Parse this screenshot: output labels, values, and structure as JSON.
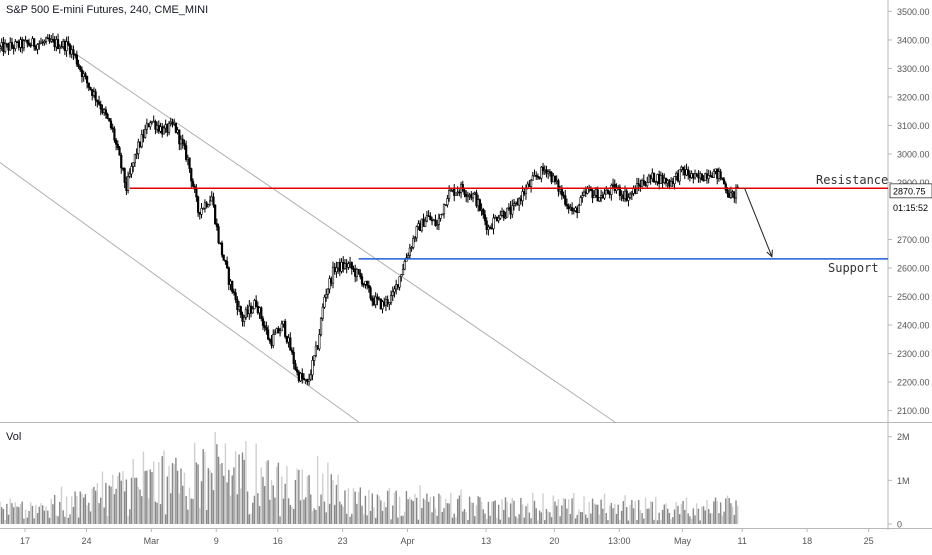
{
  "chart_data": {
    "type": "candlestick",
    "title": "S&P 500 E-mini Futures, 240, CME_MINI",
    "colors": {
      "background": "#ffffff",
      "candle": "#000000",
      "resistance": "#e00000",
      "support": "#1e5fd8",
      "channel": "#b0b0b0",
      "volume_dark": "#888888",
      "volume_light": "#cfcfcf",
      "axis_text": "#555555",
      "price_tag_bg": "#ffffff"
    },
    "price_axis": {
      "ticks": [
        "3500.00",
        "3400.00",
        "3300.00",
        "3200.00",
        "3100.00",
        "3000.00",
        "2900.00",
        "2700.00",
        "2600.00",
        "2500.00",
        "2400.00",
        "2300.00",
        "2200.00",
        "2100.00"
      ],
      "tick_values": [
        3500,
        3400,
        3300,
        3200,
        3100,
        3000,
        2900,
        2700,
        2600,
        2500,
        2400,
        2300,
        2200,
        2100
      ],
      "ylim": [
        2060,
        3540
      ]
    },
    "current_price": {
      "label": "2870.75",
      "value": 2870.75,
      "countdown": "01:15:52"
    },
    "x_axis": {
      "labels": [
        "17",
        "24",
        "Mar",
        "9",
        "16",
        "23",
        "Apr",
        "13",
        "20",
        "13:00",
        "May",
        "11",
        "18",
        "25"
      ],
      "label_index": [
        0,
        36,
        74,
        112,
        148,
        186,
        224,
        270,
        310,
        348,
        385,
        420,
        458,
        494
      ],
      "total_bars": 520
    },
    "annotations": {
      "resistance": {
        "label": "Resistance",
        "price": 2880,
        "start_bar": 76
      },
      "support": {
        "label": "Support",
        "price": 2632,
        "start_bar": 210
      },
      "arrow": {
        "from_bar": 436,
        "from_price": 2880,
        "to_bar": 452,
        "to_price": 2640
      },
      "channel_upper": {
        "from_bar": 36,
        "from_price": 3385,
        "to_bar": 360,
        "to_price": 2060
      },
      "channel_lower": {
        "from_bar": 0,
        "from_price": 2970,
        "to_bar": 210,
        "to_price": 2060
      }
    },
    "price_path": {
      "bars": [
        0,
        15,
        30,
        40,
        44,
        50,
        58,
        66,
        74,
        80,
        88,
        96,
        102,
        110,
        116,
        124,
        128,
        134,
        142,
        150,
        158,
        166,
        174,
        180,
        186,
        190,
        196,
        204,
        212,
        218,
        224,
        230,
        238,
        244,
        250,
        256,
        262,
        270,
        278,
        286,
        292,
        300,
        306,
        314,
        320,
        328,
        336,
        344,
        352,
        360,
        368,
        376,
        384,
        392,
        400,
        408,
        416,
        422,
        428,
        432
      ],
      "prices": [
        3370,
        3385,
        3390,
        3380,
        3340,
        3260,
        3180,
        3080,
        2880,
        3010,
        3120,
        3080,
        3100,
        2980,
        2800,
        2850,
        2700,
        2560,
        2420,
        2480,
        2340,
        2400,
        2230,
        2190,
        2330,
        2500,
        2600,
        2610,
        2560,
        2490,
        2470,
        2500,
        2640,
        2730,
        2780,
        2750,
        2860,
        2880,
        2850,
        2740,
        2790,
        2800,
        2860,
        2920,
        2950,
        2870,
        2790,
        2870,
        2850,
        2880,
        2850,
        2900,
        2920,
        2900,
        2940,
        2910,
        2940,
        2920,
        2850,
        2870
      ]
    },
    "volume_axis": {
      "ticks": [
        "2M",
        "1M",
        "0"
      ],
      "tick_values": [
        2000000,
        1000000,
        0
      ],
      "ylim": [
        0,
        2200000
      ]
    },
    "volume_label": "Vol",
    "volume_profile": {
      "bars": [
        0,
        40,
        80,
        110,
        130,
        150,
        170,
        186,
        200,
        230,
        260,
        300,
        340,
        380,
        420,
        440
      ],
      "values": [
        350000,
        600000,
        1200000,
        1300000,
        1500000,
        1400000,
        1000000,
        1100000,
        800000,
        650000,
        550000,
        500000,
        480000,
        460000,
        520000,
        420000
      ]
    }
  }
}
